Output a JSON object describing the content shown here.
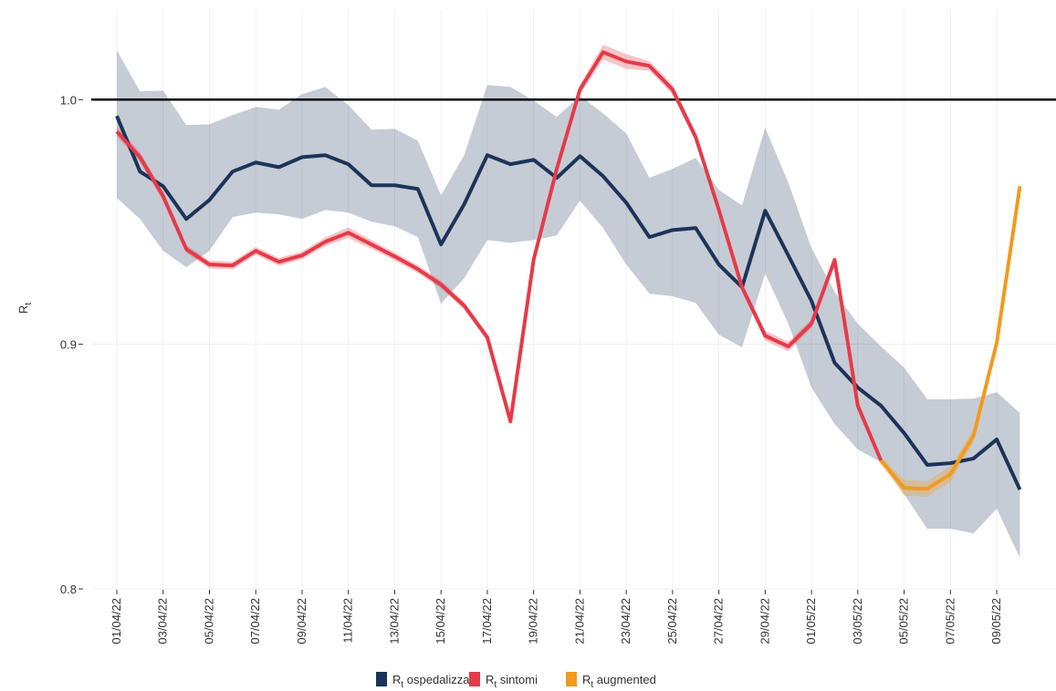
{
  "chart_data": {
    "type": "line",
    "y_label": "Rt",
    "categories": [
      "01/04/22",
      null,
      "03/04/22",
      null,
      "05/04/22",
      null,
      "07/04/22",
      null,
      "09/04/22",
      null,
      "11/04/22",
      null,
      "13/04/22",
      null,
      "15/04/22",
      null,
      "17/04/22",
      null,
      "19/04/22",
      null,
      "21/04/22",
      null,
      "23/04/22",
      null,
      "25/04/22",
      null,
      "27/04/22",
      null,
      "29/04/22",
      null,
      "01/05/22",
      null,
      "03/05/22",
      null,
      "05/05/22",
      null,
      "07/05/22",
      null,
      "09/05/22",
      null
    ],
    "ylim": [
      0.8,
      1.037
    ],
    "yticks": [
      0.8,
      0.9,
      {
        "value": 1,
        "label": "1.0"
      }
    ],
    "reference_line": 1,
    "grid": true,
    "legend": "bottom",
    "series": [
      {
        "name": "Rt ospedalizzati",
        "color": "#1c3459",
        "values": [
          0.9933,
          0.9706,
          0.9646,
          0.9512,
          0.959,
          0.9706,
          0.9743,
          0.9724,
          0.9765,
          0.9773,
          0.9736,
          0.965,
          0.965,
          0.9635,
          0.9408,
          0.9572,
          0.9773,
          0.9736,
          0.9754,
          0.968,
          0.9769,
          0.9687,
          0.9579,
          0.9438,
          0.9467,
          0.9475,
          0.9326,
          0.9233,
          0.9546,
          0.9363,
          0.9177,
          0.8924,
          0.8823,
          0.8749,
          0.8637,
          0.8507,
          0.8514,
          0.8533,
          0.8611,
          0.8406
        ],
        "upper": [
          1.0201,
          1.0034,
          1.0037,
          0.9896,
          0.9899,
          0.9937,
          0.997,
          0.9959,
          1.0022,
          1.0052,
          0.9978,
          0.9877,
          0.9881,
          0.9832,
          0.9609,
          0.9773,
          1.006,
          1.0052,
          0.9996,
          0.9929,
          1.0015,
          0.9944,
          0.9862,
          0.968,
          0.9717,
          0.9762,
          0.9631,
          0.9568,
          0.9885,
          0.9661,
          0.9393,
          0.9214,
          0.9084,
          0.8991,
          0.8905,
          0.8775,
          0.8775,
          0.8778,
          0.8804,
          0.8719
        ],
        "lower": [
          0.9598,
          0.9512,
          0.9382,
          0.9315,
          0.9382,
          0.952,
          0.9538,
          0.9531,
          0.9512,
          0.9549,
          0.9538,
          0.9501,
          0.9482,
          0.9438,
          0.9166,
          0.927,
          0.9426,
          0.9415,
          0.9426,
          0.9445,
          0.9587,
          0.9475,
          0.9326,
          0.9207,
          0.9196,
          0.9169,
          0.9039,
          0.8987,
          0.9289,
          0.9084,
          0.8823,
          0.8674,
          0.857,
          0.8518,
          0.8387,
          0.8246,
          0.8246,
          0.8227,
          0.8328,
          0.8127
        ]
      },
      {
        "name": "Rt sintomi",
        "color": "#e63a48",
        "values": [
          0.987,
          0.9765,
          0.9605,
          0.9389,
          0.9326,
          0.9322,
          0.9382,
          0.9337,
          0.9363,
          0.9419,
          0.9456,
          0.9408,
          0.9359,
          0.9307,
          0.9244,
          0.9158,
          0.9028,
          0.8685,
          0.9345,
          0.9717,
          1.0041,
          1.0194,
          1.0156,
          1.0138,
          1.0041,
          0.9847,
          0.9549,
          0.9233,
          0.9035,
          0.8991,
          0.9084,
          0.9345,
          0.8749,
          0.8525,
          null,
          null,
          null,
          null,
          null,
          null
        ],
        "upper": [
          0.989,
          0.9785,
          0.9625,
          0.9405,
          0.9342,
          0.9338,
          0.9398,
          0.9353,
          0.9379,
          0.9437,
          0.9478,
          0.9426,
          0.9375,
          0.9323,
          0.926,
          0.9174,
          0.9044,
          0.8701,
          0.9361,
          0.9735,
          1.0061,
          1.0224,
          1.0186,
          1.0158,
          1.0061,
          0.9867,
          0.9567,
          0.9251,
          0.9055,
          0.9011,
          0.9102,
          0.9361,
          0.8767,
          0.8541,
          null,
          null,
          null,
          null,
          null,
          null
        ],
        "lower": [
          0.985,
          0.9745,
          0.9585,
          0.9373,
          0.931,
          0.9306,
          0.9366,
          0.9321,
          0.9347,
          0.9401,
          0.9434,
          0.939,
          0.9343,
          0.9291,
          0.9228,
          0.9142,
          0.9012,
          0.8669,
          0.9329,
          0.9699,
          1.0021,
          1.0164,
          1.0126,
          1.0118,
          1.0021,
          0.9827,
          0.9531,
          0.9215,
          0.9015,
          0.8971,
          0.9066,
          0.9329,
          0.8731,
          0.8509,
          null,
          null,
          null,
          null,
          null,
          null
        ]
      },
      {
        "name": "Rt augmented",
        "color": "#f39a1e",
        "values": [
          null,
          null,
          null,
          null,
          null,
          null,
          null,
          null,
          null,
          null,
          null,
          null,
          null,
          null,
          null,
          null,
          null,
          null,
          null,
          null,
          null,
          null,
          null,
          null,
          null,
          null,
          null,
          null,
          null,
          null,
          null,
          null,
          null,
          0.8525,
          0.8413,
          0.8409,
          0.8469,
          0.8626,
          0.9006,
          0.9646
        ],
        "upper": [
          null,
          null,
          null,
          null,
          null,
          null,
          null,
          null,
          null,
          null,
          null,
          null,
          null,
          null,
          null,
          null,
          null,
          null,
          null,
          null,
          null,
          null,
          null,
          null,
          null,
          null,
          null,
          null,
          null,
          null,
          null,
          null,
          null,
          0.8541,
          0.8445,
          0.8441,
          0.8501,
          0.8652,
          0.9026,
          0.9656
        ],
        "lower": [
          null,
          null,
          null,
          null,
          null,
          null,
          null,
          null,
          null,
          null,
          null,
          null,
          null,
          null,
          null,
          null,
          null,
          null,
          null,
          null,
          null,
          null,
          null,
          null,
          null,
          null,
          null,
          null,
          null,
          null,
          null,
          null,
          null,
          0.8509,
          0.8381,
          0.8377,
          0.8437,
          0.86,
          0.8986,
          0.9636
        ]
      }
    ]
  }
}
